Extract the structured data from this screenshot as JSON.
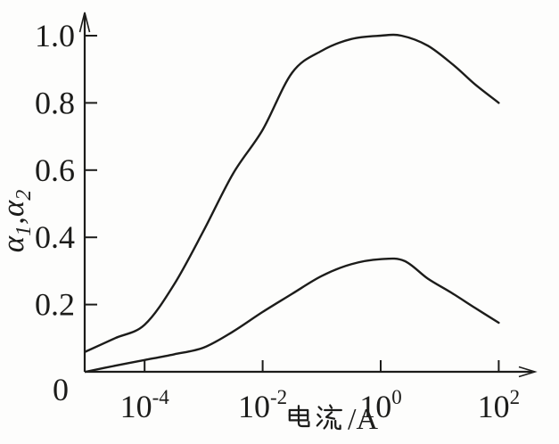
{
  "figure": {
    "background": "#fdfdfc",
    "ink_color": "#1c1c1a"
  },
  "chart_data": {
    "type": "line",
    "title": "",
    "xlabel": "电流/A",
    "xlabel_latin_part": "/A",
    "ylabel": "α₁,α₂",
    "ylabel_parts": [
      {
        "t": "α",
        "sub": false
      },
      {
        "t": "1",
        "sub": true
      },
      {
        "t": ",",
        "sub": false
      },
      {
        "t": "α",
        "sub": false
      },
      {
        "t": "2",
        "sub": true
      }
    ],
    "x_scale": "log10",
    "x_unit": "A",
    "origin_label": "0",
    "x_ticks": [
      {
        "log": -4,
        "base": "10",
        "exp": "-4",
        "label": "10⁻⁴"
      },
      {
        "log": -2,
        "base": "10",
        "exp": "-2",
        "label": "10⁻²"
      },
      {
        "log": 0,
        "base": "10",
        "exp": "0",
        "label": "10⁰"
      },
      {
        "log": 2,
        "base": "10",
        "exp": "2",
        "label": "10²"
      }
    ],
    "y_ticks": [
      {
        "value": 0.2,
        "label": "0.2"
      },
      {
        "value": 0.4,
        "label": "0.4"
      },
      {
        "value": 0.6,
        "label": "0.6"
      },
      {
        "value": 0.8,
        "label": "0.8"
      },
      {
        "value": 1.0,
        "label": "1.0"
      }
    ],
    "x_range_log": [
      -5,
      2
    ],
    "ylim": [
      0,
      1.05
    ],
    "grid": false,
    "legend": "none",
    "series": [
      {
        "name": "α1 (upper curve)",
        "points": [
          [
            -5,
            0.06
          ],
          [
            -4.5,
            0.1
          ],
          [
            -4,
            0.14
          ],
          [
            -3.5,
            0.26
          ],
          [
            -3,
            0.42
          ],
          [
            -2.5,
            0.59
          ],
          [
            -2,
            0.72
          ],
          [
            -1.5,
            0.89
          ],
          [
            -1,
            0.955
          ],
          [
            -0.5,
            0.99
          ],
          [
            0,
            1.0
          ],
          [
            0.35,
            1.0
          ],
          [
            0.8,
            0.97
          ],
          [
            1.25,
            0.91
          ],
          [
            1.6,
            0.855
          ],
          [
            2,
            0.8
          ]
        ]
      },
      {
        "name": "α2 (lower curve)",
        "points": [
          [
            -5,
            0.0
          ],
          [
            -4.5,
            0.018
          ],
          [
            -4,
            0.035
          ],
          [
            -3.5,
            0.052
          ],
          [
            -3,
            0.072
          ],
          [
            -2.5,
            0.12
          ],
          [
            -2,
            0.178
          ],
          [
            -1.5,
            0.232
          ],
          [
            -1,
            0.285
          ],
          [
            -0.5,
            0.32
          ],
          [
            0,
            0.335
          ],
          [
            0.4,
            0.33
          ],
          [
            0.8,
            0.277
          ],
          [
            1.2,
            0.235
          ],
          [
            1.6,
            0.19
          ],
          [
            2,
            0.146
          ]
        ]
      }
    ]
  }
}
